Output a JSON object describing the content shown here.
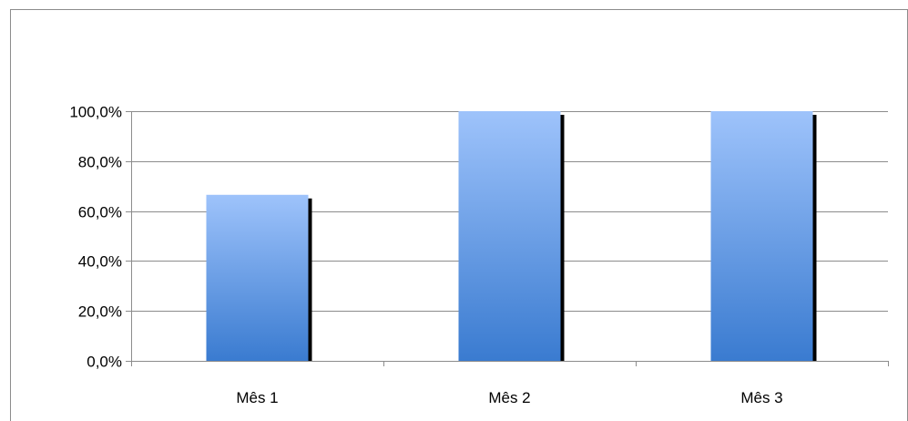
{
  "chart_data": {
    "type": "bar",
    "categories": [
      "Mês 1",
      "Mês 2",
      "Mês 3"
    ],
    "values": [
      66.5,
      100,
      100
    ],
    "ylim": [
      0,
      100
    ],
    "yticks": [
      "0,0%",
      "20,0%",
      "40,0%",
      "60,0%",
      "80,0%",
      "100,0%"
    ],
    "grid": true,
    "legend": "none",
    "colors": {
      "bar_top": "#9ec3fb",
      "bar_bottom": "#3a7bd0",
      "shadow": "#000000",
      "grid": "#8c8c8c",
      "text": "#000000"
    }
  }
}
